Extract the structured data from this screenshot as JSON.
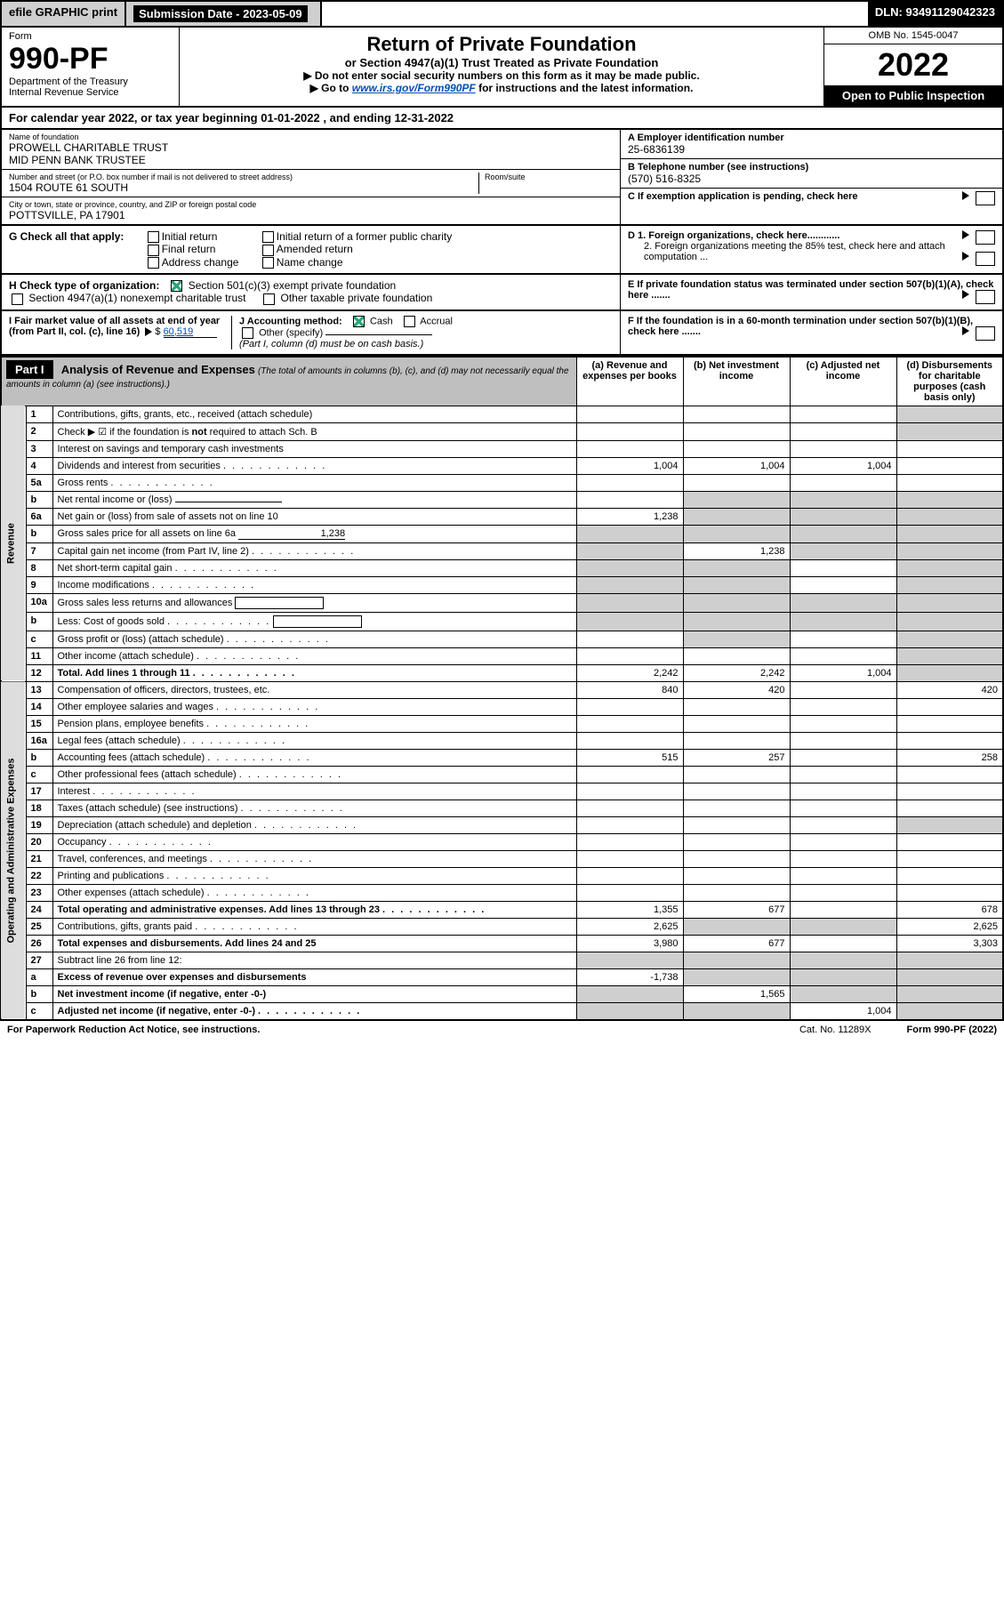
{
  "topbar": {
    "efile": "efile GRAPHIC print",
    "submission_label": "Submission Date - 2023-05-09",
    "dln": "DLN: 93491129042323"
  },
  "header": {
    "form_label": "Form",
    "form_no": "990-PF",
    "dept": "Department of the Treasury",
    "irs": "Internal Revenue Service",
    "title": "Return of Private Foundation",
    "subtitle": "or Section 4947(a)(1) Trust Treated as Private Foundation",
    "instr1": "▶ Do not enter social security numbers on this form as it may be made public.",
    "instr2_pre": "▶ Go to ",
    "instr2_link": "www.irs.gov/Form990PF",
    "instr2_post": " for instructions and the latest information.",
    "omb": "OMB No. 1545-0047",
    "year": "2022",
    "opento": "Open to Public Inspection"
  },
  "cal": {
    "text_pre": "For calendar year 2022, or tax year beginning ",
    "begin": "01-01-2022",
    "text_mid": " , and ending ",
    "end": "12-31-2022"
  },
  "id": {
    "name_lbl": "Name of foundation",
    "name": "PROWELL CHARITABLE TRUST\nMID PENN BANK TRUSTEE",
    "addr_lbl": "Number and street (or P.O. box number if mail is not delivered to street address)",
    "addr": "1504 ROUTE 61 SOUTH",
    "room_lbl": "Room/suite",
    "city_lbl": "City or town, state or province, country, and ZIP or foreign postal code",
    "city": "POTTSVILLE, PA  17901",
    "ein_lbl": "A Employer identification number",
    "ein": "25-6836139",
    "tel_lbl": "B Telephone number (see instructions)",
    "tel": "(570) 516-8325",
    "c": "C If exemption application is pending, check here",
    "d1": "D 1. Foreign organizations, check here............",
    "d2": "2. Foreign organizations meeting the 85% test, check here and attach computation ...",
    "e": "E  If private foundation status was terminated under section 507(b)(1)(A), check here .......",
    "f": "F  If the foundation is in a 60-month termination under section 507(b)(1)(B), check here .......",
    "g_lbl": "G Check all that apply:",
    "g_opts": [
      "Initial return",
      "Final return",
      "Address change",
      "Initial return of a former public charity",
      "Amended return",
      "Name change"
    ],
    "h_lbl": "H Check type of organization:",
    "h1": "Section 501(c)(3) exempt private foundation",
    "h2": "Section 4947(a)(1) nonexempt charitable trust",
    "h3": "Other taxable private foundation",
    "i_lbl": "I Fair market value of all assets at end of year (from Part II, col. (c), line 16)",
    "i_val": "60,519",
    "j_lbl": "J Accounting method:",
    "j_cash": "Cash",
    "j_accr": "Accrual",
    "j_other": "Other (specify)",
    "j_note": "(Part I, column (d) must be on cash basis.)"
  },
  "part1": {
    "label": "Part I",
    "title": "Analysis of Revenue and Expenses",
    "title_note": "(The total of amounts in columns (b), (c), and (d) may not necessarily equal the amounts in column (a) (see instructions).)",
    "cols": {
      "a": "(a) Revenue and expenses per books",
      "b": "(b) Net investment income",
      "c": "(c) Adjusted net income",
      "d": "(d) Disbursements for charitable purposes (cash basis only)"
    }
  },
  "sections": {
    "rev": "Revenue",
    "oae": "Operating and Administrative Expenses"
  },
  "rows": [
    {
      "n": "1",
      "d": "Contributions, gifts, grants, etc., received (attach schedule)",
      "a": "",
      "b": "",
      "c": "",
      "dS": "s",
      "s": "rev"
    },
    {
      "n": "2",
      "d": "Check ▶ ☑ if the foundation is not required to attach Sch. B",
      "dotted": true,
      "a": "",
      "b": "",
      "c": "",
      "dS": "s",
      "s": "rev",
      "bold_not": true
    },
    {
      "n": "3",
      "d": "Interest on savings and temporary cash investments",
      "a": "",
      "b": "",
      "c": "",
      "dv": "",
      "s": "rev"
    },
    {
      "n": "4",
      "d": "Dividends and interest from securities",
      "dots": true,
      "a": "1,004",
      "b": "1,004",
      "c": "1,004",
      "dv": "",
      "s": "rev"
    },
    {
      "n": "5a",
      "d": "Gross rents",
      "dots": true,
      "a": "",
      "b": "",
      "c": "",
      "dv": "",
      "s": "rev"
    },
    {
      "n": "b",
      "d": "Net rental income or (loss)",
      "underline": true,
      "a": "",
      "b": "s",
      "c": "s",
      "dS": "s",
      "s": "rev"
    },
    {
      "n": "6a",
      "d": "Net gain or (loss) from sale of assets not on line 10",
      "a": "1,238",
      "b": "s",
      "c": "s",
      "dS": "s",
      "s": "rev"
    },
    {
      "n": "b",
      "d": "Gross sales price for all assets on line 6a",
      "underline": true,
      "uval": "1,238",
      "a": "s",
      "b": "s",
      "c": "s",
      "dS": "s",
      "s": "rev"
    },
    {
      "n": "7",
      "d": "Capital gain net income (from Part IV, line 2)",
      "dots": true,
      "a": "s",
      "b": "1,238",
      "c": "s",
      "dS": "s",
      "s": "rev"
    },
    {
      "n": "8",
      "d": "Net short-term capital gain",
      "dots": true,
      "a": "s",
      "b": "s",
      "c": "",
      "dS": "s",
      "s": "rev"
    },
    {
      "n": "9",
      "d": "Income modifications",
      "dots": true,
      "a": "s",
      "b": "s",
      "c": "",
      "dS": "s",
      "s": "rev"
    },
    {
      "n": "10a",
      "d": "Gross sales less returns and allowances",
      "box": true,
      "a": "s",
      "b": "s",
      "c": "s",
      "dS": "s",
      "s": "rev"
    },
    {
      "n": "b",
      "d": "Less: Cost of goods sold",
      "dots": true,
      "box": true,
      "a": "s",
      "b": "s",
      "c": "s",
      "dS": "s",
      "s": "rev"
    },
    {
      "n": "c",
      "d": "Gross profit or (loss) (attach schedule)",
      "dots": true,
      "a": "",
      "b": "s",
      "c": "",
      "dS": "s",
      "s": "rev"
    },
    {
      "n": "11",
      "d": "Other income (attach schedule)",
      "dots": true,
      "a": "",
      "b": "",
      "c": "",
      "dS": "s",
      "s": "rev"
    },
    {
      "n": "12",
      "d": "Total. Add lines 1 through 11",
      "dots": true,
      "bold": true,
      "a": "2,242",
      "b": "2,242",
      "c": "1,004",
      "dS": "s",
      "s": "rev"
    },
    {
      "n": "13",
      "d": "Compensation of officers, directors, trustees, etc.",
      "a": "840",
      "b": "420",
      "c": "",
      "dv": "420",
      "s": "oae"
    },
    {
      "n": "14",
      "d": "Other employee salaries and wages",
      "dots": true,
      "a": "",
      "b": "",
      "c": "",
      "dv": "",
      "s": "oae"
    },
    {
      "n": "15",
      "d": "Pension plans, employee benefits",
      "dots": true,
      "a": "",
      "b": "",
      "c": "",
      "dv": "",
      "s": "oae"
    },
    {
      "n": "16a",
      "d": "Legal fees (attach schedule)",
      "dots": true,
      "a": "",
      "b": "",
      "c": "",
      "dv": "",
      "s": "oae"
    },
    {
      "n": "b",
      "d": "Accounting fees (attach schedule)",
      "dots": true,
      "a": "515",
      "b": "257",
      "c": "",
      "dv": "258",
      "s": "oae"
    },
    {
      "n": "c",
      "d": "Other professional fees (attach schedule)",
      "dots": true,
      "a": "",
      "b": "",
      "c": "",
      "dv": "",
      "s": "oae"
    },
    {
      "n": "17",
      "d": "Interest",
      "dots": true,
      "a": "",
      "b": "",
      "c": "",
      "dv": "",
      "s": "oae"
    },
    {
      "n": "18",
      "d": "Taxes (attach schedule) (see instructions)",
      "dots": true,
      "a": "",
      "b": "",
      "c": "",
      "dv": "",
      "s": "oae"
    },
    {
      "n": "19",
      "d": "Depreciation (attach schedule) and depletion",
      "dots": true,
      "a": "",
      "b": "",
      "c": "",
      "dS": "s",
      "s": "oae"
    },
    {
      "n": "20",
      "d": "Occupancy",
      "dots": true,
      "a": "",
      "b": "",
      "c": "",
      "dv": "",
      "s": "oae"
    },
    {
      "n": "21",
      "d": "Travel, conferences, and meetings",
      "dots": true,
      "a": "",
      "b": "",
      "c": "",
      "dv": "",
      "s": "oae"
    },
    {
      "n": "22",
      "d": "Printing and publications",
      "dots": true,
      "a": "",
      "b": "",
      "c": "",
      "dv": "",
      "s": "oae"
    },
    {
      "n": "23",
      "d": "Other expenses (attach schedule)",
      "dots": true,
      "a": "",
      "b": "",
      "c": "",
      "dv": "",
      "s": "oae"
    },
    {
      "n": "24",
      "d": "Total operating and administrative expenses. Add lines 13 through 23",
      "dots": true,
      "bold": true,
      "a": "1,355",
      "b": "677",
      "c": "",
      "dv": "678",
      "s": "oae"
    },
    {
      "n": "25",
      "d": "Contributions, gifts, grants paid",
      "dots": true,
      "a": "2,625",
      "b": "s",
      "c": "s",
      "dv": "2,625",
      "s": "oae"
    },
    {
      "n": "26",
      "d": "Total expenses and disbursements. Add lines 24 and 25",
      "bold": true,
      "a": "3,980",
      "b": "677",
      "c": "",
      "dv": "3,303",
      "s": "oae"
    },
    {
      "n": "27",
      "d": "Subtract line 26 from line 12:",
      "a": "s",
      "b": "s",
      "c": "s",
      "dS": "s",
      "s": "oae"
    },
    {
      "n": "a",
      "d": "Excess of revenue over expenses and disbursements",
      "bold": true,
      "a": "-1,738",
      "b": "s",
      "c": "s",
      "dS": "s",
      "s": "oae"
    },
    {
      "n": "b",
      "d": "Net investment income (if negative, enter -0-)",
      "bold": true,
      "a": "s",
      "b": "1,565",
      "c": "s",
      "dS": "s",
      "s": "oae"
    },
    {
      "n": "c",
      "d": "Adjusted net income (if negative, enter -0-)",
      "dots": true,
      "bold": true,
      "a": "s",
      "b": "s",
      "c": "1,004",
      "dS": "s",
      "s": "oae"
    }
  ],
  "footer": {
    "pra": "For Paperwork Reduction Act Notice, see instructions.",
    "cat": "Cat. No. 11289X",
    "form": "Form 990-PF (2022)"
  },
  "colors": {
    "shade": "#cfcfcf",
    "link": "#0050b0",
    "check": "#2a7a3a"
  }
}
